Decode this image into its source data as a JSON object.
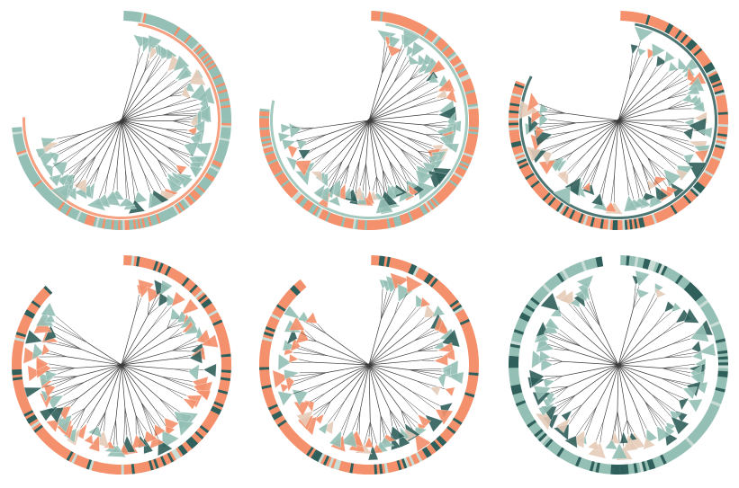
{
  "colors": {
    "coral": "#f4906b",
    "teal": "#94bfb4",
    "dark_teal": "#2f5f5a",
    "pale_teal": "#c9ddd6",
    "beige": "#e6cbb8",
    "branch": "#3b3b3b",
    "background": "#ffffff"
  },
  "panels": [
    {
      "name": "tree-panel-1",
      "ring_base": "teal",
      "ring_accent": "coral",
      "ring_span_deg": 265,
      "fan_mix": {
        "teal": 0.75,
        "coral": 0.1,
        "dark_teal": 0.05,
        "beige": 0.1
      }
    },
    {
      "name": "tree-panel-2",
      "ring_base": "coral",
      "ring_accent": "teal",
      "ring_span_deg": 275,
      "fan_mix": {
        "teal": 0.6,
        "coral": 0.2,
        "dark_teal": 0.1,
        "beige": 0.1
      }
    },
    {
      "name": "tree-panel-3",
      "ring_base": "coral",
      "ring_accent": "dark_teal",
      "ring_span_deg": 290,
      "fan_mix": {
        "teal": 0.5,
        "coral": 0.25,
        "dark_teal": 0.15,
        "beige": 0.1
      }
    },
    {
      "name": "tree-panel-4",
      "ring_base": "coral",
      "ring_accent": "dark_teal",
      "ring_span_deg": 315,
      "fan_mix": {
        "teal": 0.3,
        "coral": 0.45,
        "dark_teal": 0.15,
        "beige": 0.1
      }
    },
    {
      "name": "tree-panel-5",
      "ring_base": "coral",
      "ring_accent": "dark_teal",
      "ring_span_deg": 320,
      "fan_mix": {
        "teal": 0.3,
        "coral": 0.45,
        "dark_teal": 0.15,
        "beige": 0.1
      }
    },
    {
      "name": "tree-panel-6",
      "ring_base": "teal",
      "ring_accent": "dark_teal",
      "ring_span_deg": 350,
      "fan_mix": {
        "teal": 0.55,
        "coral": 0.0,
        "dark_teal": 0.3,
        "beige": 0.15
      }
    }
  ]
}
